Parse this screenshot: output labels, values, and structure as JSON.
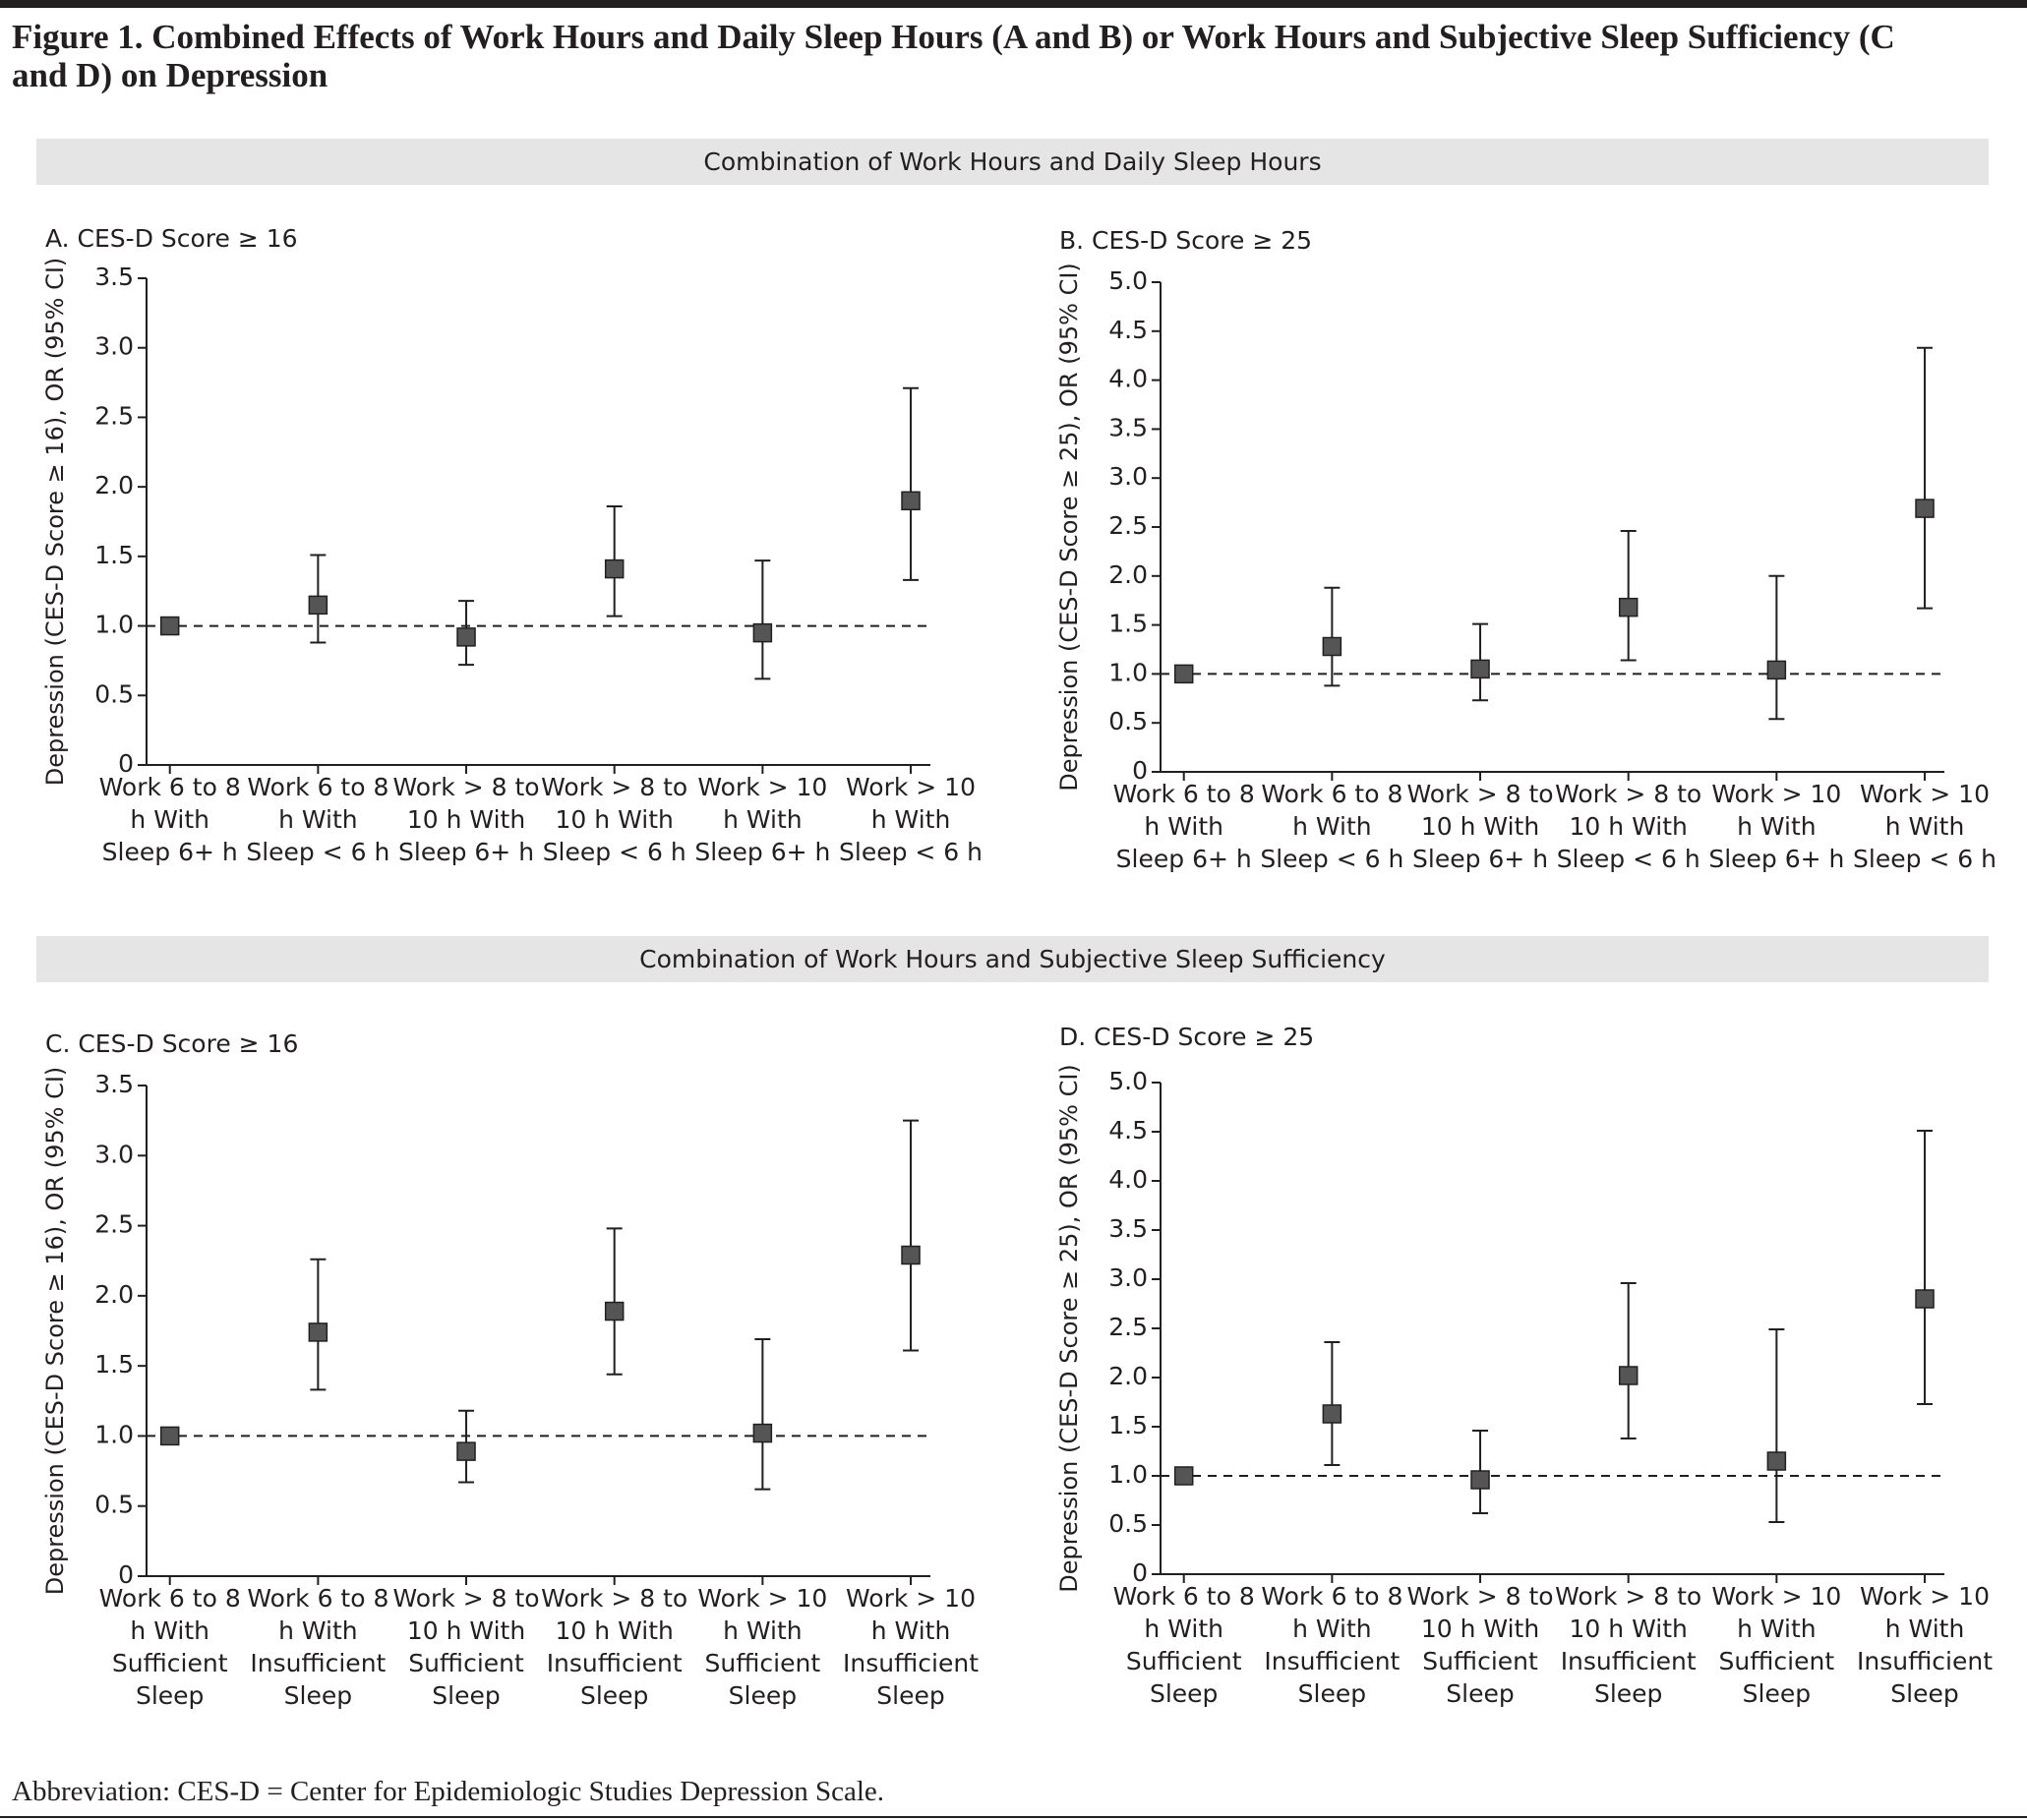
{
  "title": "Figure 1. Combined Effects of Work Hours and Daily Sleep Hours (A and B) or Work Hours and Subjective Sleep Sufficiency (C and D) on Depression",
  "sections": [
    "Combination of Work Hours and Daily Sleep Hours",
    "Combination of Work Hours and Subjective Sleep Sufficiency"
  ],
  "footnote": "Abbreviation: CES-D = Center for Epidemiologic Studies Depression Scale.",
  "chart_data": [
    {
      "type": "errorbar",
      "title": "A. CES-D Score ≥ 16",
      "y_label": "Depression (CES-D Score ≥ 16), OR (95% CI)",
      "color": "#555555",
      "categories": [
        "Work 6 to 8 h With Sleep 6+ h",
        "Work 6 to 8 h With Sleep < 6 h",
        "Work > 8 to 10 h With Sleep 6+ h",
        "Work > 8 to 10 h With Sleep < 6 h",
        "Work > 10 h With Sleep 6+ h",
        "Work > 10 h With Sleep < 6 h"
      ],
      "values": [
        1.0,
        1.15,
        0.92,
        1.41,
        0.95,
        1.9
      ],
      "lower": [
        null,
        0.88,
        0.72,
        1.07,
        0.62,
        1.33
      ],
      "upper": [
        null,
        1.51,
        1.18,
        1.86,
        1.47,
        2.71
      ],
      "reference_line": 1,
      "ylim": [
        0,
        3.5
      ],
      "yticks": [
        0,
        0.5,
        {
          "value": 1,
          "label": "1.0"
        },
        1.5,
        {
          "value": 2,
          "label": "2.0"
        },
        2.5,
        {
          "value": 3,
          "label": "3.0"
        },
        3.5
      ]
    },
    {
      "type": "errorbar",
      "title": "B. CES-D Score ≥ 25",
      "y_label": "Depression (CES-D Score ≥ 25), OR (95% CI)",
      "color": "#555555",
      "categories": [
        "Work 6 to 8 h With Sleep 6+ h",
        "Work 6 to 8 h With Sleep < 6 h",
        "Work > 8 to 10 h With Sleep 6+ h",
        "Work > 8 to 10 h With Sleep < 6 h",
        "Work > 10 h With Sleep 6+ h",
        "Work > 10 h With Sleep < 6 h"
      ],
      "values": [
        1.0,
        1.28,
        1.05,
        1.68,
        1.04,
        2.69
      ],
      "lower": [
        null,
        0.88,
        0.73,
        1.14,
        0.54,
        1.67
      ],
      "upper": [
        null,
        1.88,
        1.51,
        2.46,
        2.0,
        4.33
      ],
      "reference_line": 1,
      "ylim": [
        0,
        5
      ],
      "yticks": [
        0,
        0.5,
        {
          "value": 1,
          "label": "1.0"
        },
        1.5,
        {
          "value": 2,
          "label": "2.0"
        },
        2.5,
        {
          "value": 3,
          "label": "3.0"
        },
        3.5,
        {
          "value": 4,
          "label": "4.0"
        },
        4.5,
        {
          "value": 5,
          "label": "5.0"
        }
      ]
    },
    {
      "type": "errorbar",
      "title": "C. CES-D Score ≥ 16",
      "y_label": "Depression (CES-D Score ≥ 16), OR (95% CI)",
      "color": "#555555",
      "categories": [
        "Work 6 to 8 h With Sufficient Sleep",
        "Work 6 to 8 h With Insufficient Sleep",
        "Work > 8 to 10 h With Sufficient Sleep",
        "Work > 8 to 10 h With Insufficient Sleep",
        "Work > 10 h With Sufficient Sleep",
        "Work > 10 h With Insufficient Sleep"
      ],
      "values": [
        1.0,
        1.74,
        0.89,
        1.89,
        1.02,
        2.29
      ],
      "lower": [
        null,
        1.33,
        0.67,
        1.44,
        0.62,
        1.61
      ],
      "upper": [
        null,
        2.26,
        1.18,
        2.48,
        1.69,
        3.25
      ],
      "reference_line": 1,
      "ylim": [
        0,
        3.5
      ],
      "yticks": [
        0,
        0.5,
        {
          "value": 1,
          "label": "1.0"
        },
        1.5,
        {
          "value": 2,
          "label": "2.0"
        },
        2.5,
        {
          "value": 3,
          "label": "3.0"
        },
        3.5
      ]
    },
    {
      "type": "errorbar",
      "title": "D. CES-D Score ≥ 25",
      "y_label": "Depression (CES-D Score ≥ 25), OR (95% CI)",
      "color": "#555555",
      "categories": [
        "Work 6 to 8 h With Sufficient Sleep",
        "Work 6 to 8 h With Insufficient Sleep",
        "Work > 8 to 10 h With Sufficient Sleep",
        "Work > 8 to 10 h With Insufficient Sleep",
        "Work > 10 h With Sufficient Sleep",
        "Work > 10 h With Insufficient Sleep"
      ],
      "values": [
        1.0,
        1.63,
        0.96,
        2.02,
        1.15,
        2.8
      ],
      "lower": [
        null,
        1.11,
        0.62,
        1.38,
        0.53,
        1.73
      ],
      "upper": [
        null,
        2.36,
        1.46,
        2.96,
        2.49,
        4.51
      ],
      "reference_line": 1,
      "ylim": [
        0,
        5
      ],
      "yticks": [
        0,
        0.5,
        {
          "value": 1,
          "label": "1.0"
        },
        1.5,
        {
          "value": 2,
          "label": "2.0"
        },
        2.5,
        {
          "value": 3,
          "label": "3.0"
        },
        3.5,
        {
          "value": 4,
          "label": "4.0"
        },
        4.5,
        {
          "value": 5,
          "label": "5.0"
        }
      ]
    }
  ]
}
